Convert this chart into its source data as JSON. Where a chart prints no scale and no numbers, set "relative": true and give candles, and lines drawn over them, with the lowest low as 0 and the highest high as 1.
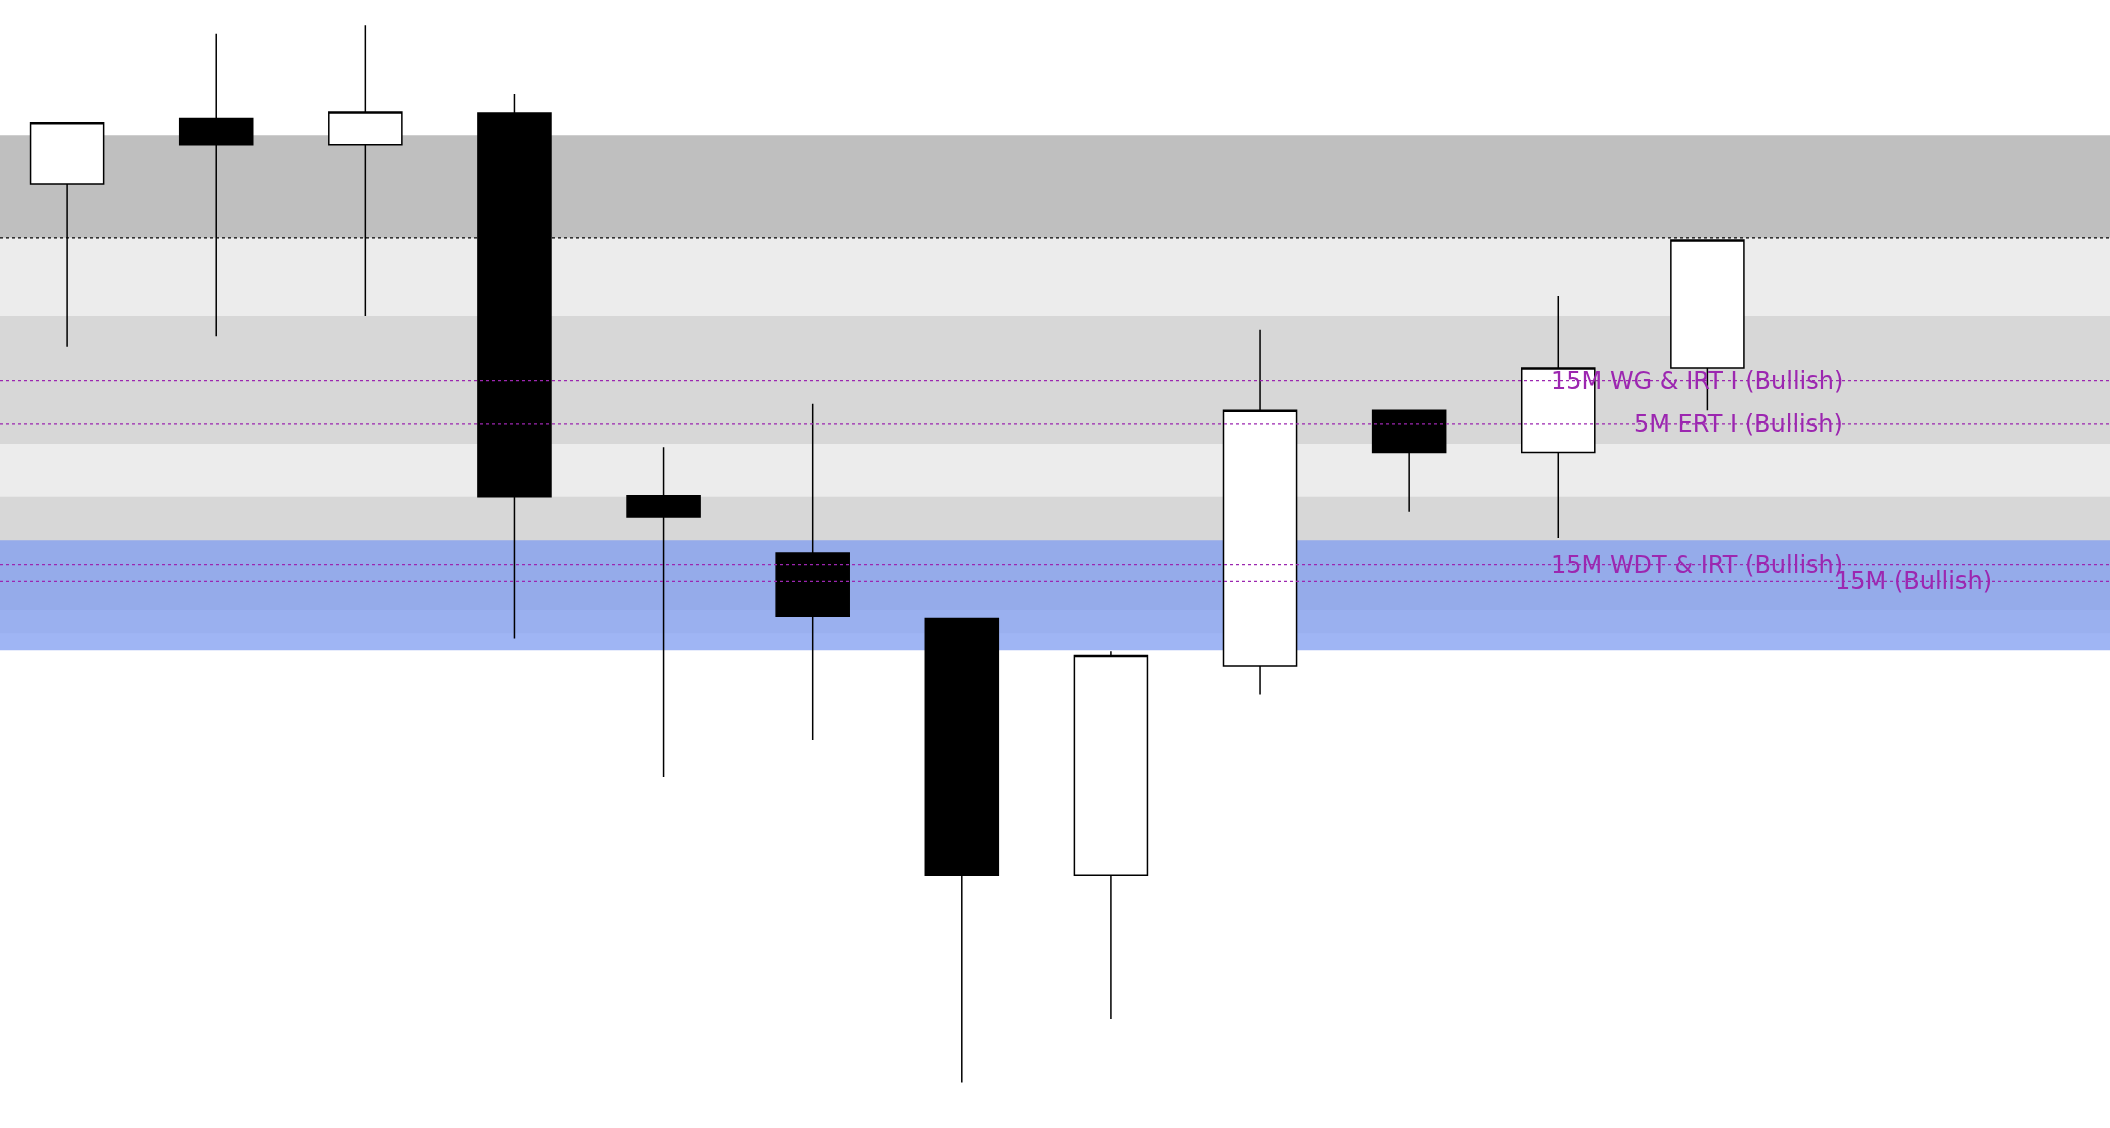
{
  "chart_data": {
    "type": "candlestick",
    "relative": true,
    "legend": false,
    "categories": [
      null,
      null,
      null,
      null,
      null,
      null,
      null,
      null,
      null,
      null,
      null,
      null
    ],
    "ohlc": [
      [
        0.85,
        0.908,
        0.696,
        0.908
      ],
      [
        0.912,
        0.992,
        0.706,
        0.887
      ],
      [
        0.887,
        1.0,
        0.725,
        0.918
      ],
      [
        0.917,
        0.935,
        0.42,
        0.554
      ],
      [
        0.555,
        0.601,
        0.289,
        0.535
      ],
      [
        0.501,
        0.642,
        0.324,
        0.441
      ],
      [
        0.439,
        0.439,
        0.0,
        0.196
      ],
      [
        0.196,
        0.408,
        0.06,
        0.404
      ],
      [
        0.394,
        0.712,
        0.367,
        0.636
      ],
      [
        0.636,
        0.636,
        0.54,
        0.596
      ],
      [
        0.596,
        0.744,
        0.515,
        0.676
      ],
      [
        0.676,
        0.797,
        0.636,
        0.797
      ]
    ],
    "ref_lines": [
      {
        "axis": "y",
        "value": 0.799,
        "color": "#000000",
        "line_style": "dotted"
      },
      {
        "axis": "y",
        "value": 0.664,
        "color": "#9c27b0",
        "line_style": "dotted"
      },
      {
        "axis": "y",
        "value": 0.623,
        "color": "#9c27b0",
        "line_style": "dotted"
      },
      {
        "axis": "y",
        "value": 0.49,
        "color": "#9c27b0",
        "line_style": "dotted"
      },
      {
        "axis": "y",
        "value": 0.474,
        "color": "#9c27b0",
        "line_style": "dotted"
      }
    ],
    "bands": [
      {
        "axis": "y",
        "from": 0.425,
        "to": 0.799,
        "color": "#e6e6e6"
      },
      {
        "axis": "y",
        "from": 0.604,
        "to": 0.725,
        "color": "#d0d0d0"
      },
      {
        "axis": "y",
        "from": 0.447,
        "to": 0.554,
        "color": "#d0d0d0"
      },
      {
        "axis": "y",
        "from": 0.409,
        "to": 0.513,
        "color": "#7f9cf0"
      },
      {
        "axis": "y",
        "from": 0.799,
        "to": 0.896,
        "color": "#aaaaaa"
      }
    ],
    "annotations": [
      {
        "text": "15M WG & IRT I (Bullish)",
        "y": 0.664
      },
      {
        "text": "5M ERT I (Bullish)",
        "y": 0.623
      },
      {
        "text": "15M WDT & IRT (Bullish)",
        "y": 0.49
      },
      {
        "text": "15M (Bullish)",
        "y": 0.474
      }
    ]
  }
}
